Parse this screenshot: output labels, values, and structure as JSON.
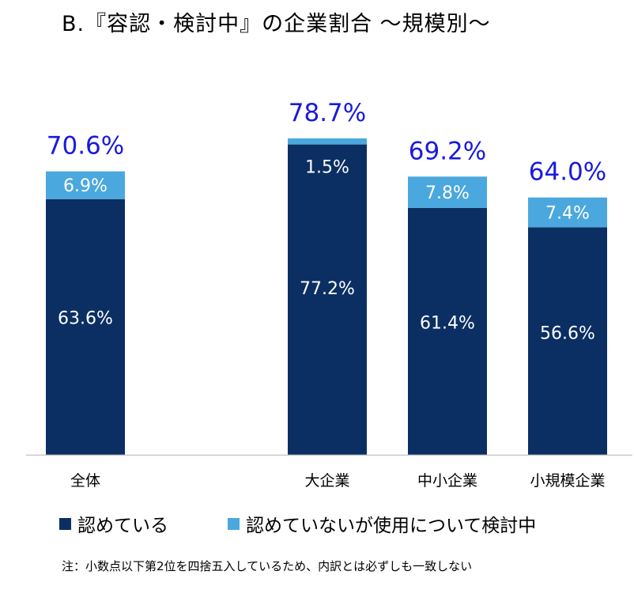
{
  "title": "B.『容認・検討中』の企業割合 ～規模別～",
  "chart_data": {
    "type": "bar",
    "stacked": true,
    "categories": [
      "全体",
      "大企業",
      "中小企業",
      "小規模企業"
    ],
    "series": [
      {
        "name": "認めている",
        "values": [
          63.6,
          77.2,
          61.4,
          56.6
        ],
        "labels": [
          "63.6%",
          "77.2%",
          "61.4%",
          "56.6%"
        ],
        "color": "#0b2f63"
      },
      {
        "name": "認めていないが使用について検討中",
        "values": [
          6.9,
          1.5,
          7.8,
          7.4
        ],
        "labels": [
          "6.9%",
          "1.5%",
          "7.8%",
          "7.4%"
        ],
        "color": "#4aa8de"
      }
    ],
    "totals": [
      70.6,
      78.7,
      69.2,
      64.0
    ],
    "total_labels": [
      "70.6%",
      "78.7%",
      "69.2%",
      "64.0%"
    ],
    "total_label_color": "#1a1adc",
    "ylim": [
      0,
      78.7
    ]
  },
  "note": "注：小数点以下第2位を四捨五入しているため、内訳とは必ずしも一致しない"
}
